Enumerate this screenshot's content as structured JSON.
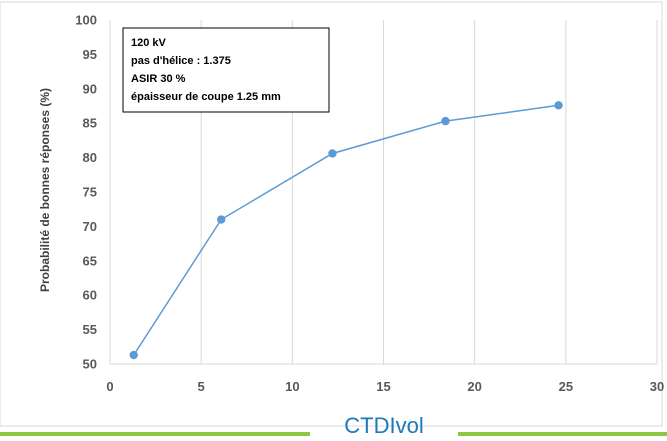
{
  "chart_data": {
    "type": "line",
    "xlabel": "CTDIvol",
    "ylabel": "Probabilité de bonnes réponses (%)",
    "xlim": [
      0,
      30
    ],
    "ylim": [
      50,
      100
    ],
    "xticks": [
      0,
      5,
      10,
      15,
      20,
      25,
      30
    ],
    "yticks": [
      50,
      55,
      60,
      65,
      70,
      75,
      80,
      85,
      90,
      95,
      100
    ],
    "grid": "vertical",
    "series": [
      {
        "x": [
          1.3,
          6.1,
          12.2,
          18.4,
          24.6
        ],
        "y": [
          51.3,
          71.0,
          80.6,
          85.3,
          87.6
        ]
      }
    ],
    "annotation": {
      "lines": [
        "120 kV",
        "pas d'hélice : 1.375",
        "ASIR 30 %",
        "épaisseur de coupe 1.25 mm"
      ],
      "placement": "top-left"
    },
    "colors": {
      "line": "#5b9bd5",
      "marker": "#5b9bd5",
      "grid": "#d9d9d9",
      "xlabel": "#1f78b8",
      "footer_bar": "#8dc63f"
    }
  }
}
